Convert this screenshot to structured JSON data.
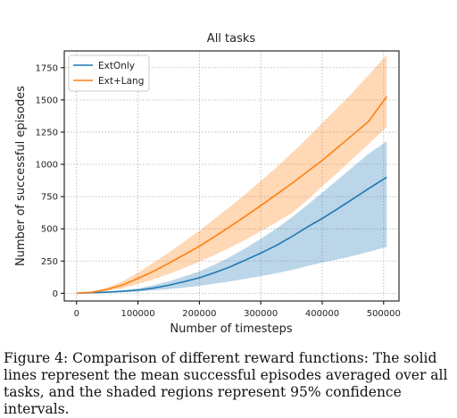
{
  "chart_data": {
    "type": "line",
    "title": "All tasks",
    "xlabel": "Number of timesteps",
    "ylabel": "Number of successful episodes",
    "xlim": [
      -20000,
      525000
    ],
    "ylim": [
      -60,
      1880
    ],
    "xticks": [
      0,
      100000,
      200000,
      300000,
      400000,
      500000
    ],
    "yticks": [
      0,
      250,
      500,
      750,
      1000,
      1250,
      1500,
      1750
    ],
    "grid": true,
    "legend_position": "top-left",
    "series": [
      {
        "name": "ExtOnly",
        "color": "#1f77b4",
        "x": [
          0,
          25000,
          50000,
          75000,
          100000,
          125000,
          150000,
          175000,
          200000,
          225000,
          250000,
          275000,
          300000,
          325000,
          350000,
          375000,
          400000,
          425000,
          450000,
          475000,
          505000
        ],
        "y": [
          0,
          4,
          9,
          15,
          24,
          40,
          62,
          90,
          120,
          160,
          205,
          258,
          312,
          370,
          438,
          512,
          580,
          655,
          732,
          810,
          900
        ],
        "lower": [
          0,
          3,
          6,
          10,
          14,
          22,
          32,
          44,
          58,
          74,
          92,
          112,
          132,
          155,
          180,
          210,
          238,
          262,
          290,
          320,
          360
        ],
        "upper": [
          0,
          6,
          14,
          24,
          38,
          62,
          92,
          130,
          170,
          222,
          282,
          350,
          422,
          500,
          588,
          682,
          780,
          880,
          980,
          1080,
          1180
        ]
      },
      {
        "name": "Ext+Lang",
        "color": "#ff7f0e",
        "x": [
          0,
          25000,
          50000,
          75000,
          100000,
          125000,
          150000,
          175000,
          200000,
          225000,
          250000,
          275000,
          300000,
          325000,
          350000,
          375000,
          400000,
          425000,
          450000,
          475000,
          505000
        ],
        "y": [
          0,
          8,
          30,
          65,
          115,
          170,
          232,
          298,
          365,
          440,
          518,
          598,
          680,
          765,
          850,
          940,
          1030,
          1130,
          1230,
          1330,
          1525
        ],
        "lower": [
          0,
          5,
          18,
          40,
          72,
          108,
          150,
          195,
          245,
          298,
          355,
          415,
          480,
          550,
          620,
          720,
          830,
          935,
          1045,
          1155,
          1290
        ],
        "upper": [
          0,
          12,
          45,
          92,
          160,
          235,
          315,
          400,
          485,
          578,
          672,
          770,
          870,
          975,
          1085,
          1200,
          1320,
          1440,
          1560,
          1690,
          1850
        ]
      }
    ]
  },
  "caption": "Figure 4: Comparison of different reward functions: The solid lines represent the mean successful episodes averaged over all tasks, and the shaded regions represent 95% confidence intervals."
}
